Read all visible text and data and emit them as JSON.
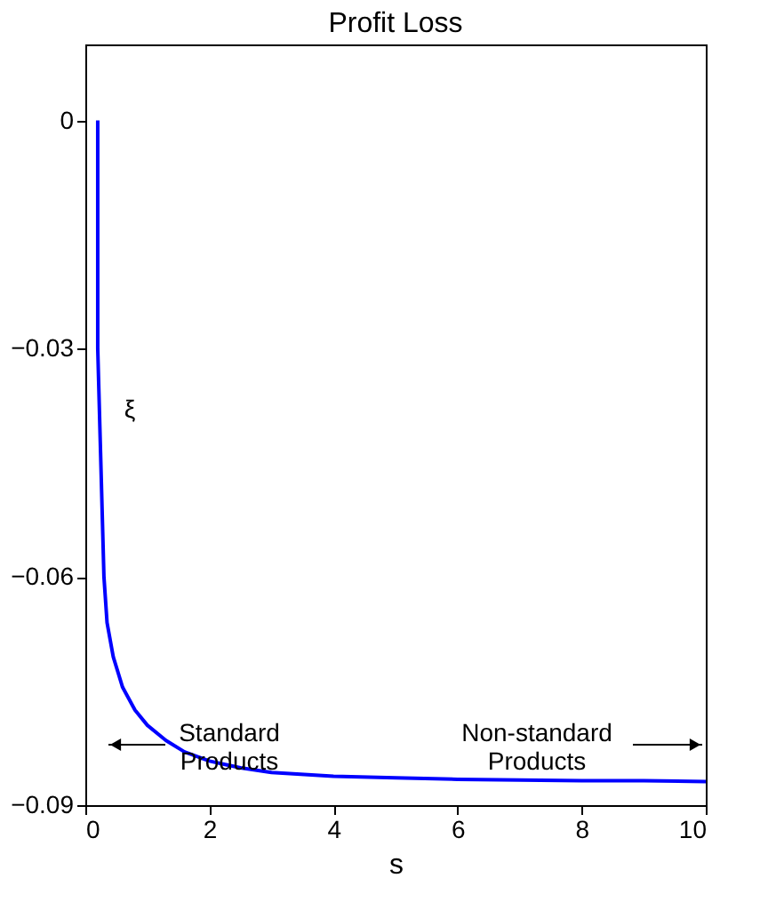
{
  "chart_data": {
    "type": "line",
    "title": "Profit Loss",
    "xlabel": "s",
    "x": [
      0.2,
      0.2,
      0.3,
      0.35,
      0.45,
      0.6,
      0.8,
      1.0,
      1.3,
      1.6,
      2.0,
      2.5,
      3.0,
      4.0,
      5.0,
      6.0,
      7.0,
      8.0,
      9.0,
      10.0
    ],
    "series": [
      {
        "color": "#0000ff",
        "values": [
          0,
          -0.03,
          -0.06,
          -0.066,
          -0.0705,
          -0.0745,
          -0.0775,
          -0.0795,
          -0.0815,
          -0.083,
          -0.0842,
          -0.0851,
          -0.0857,
          -0.0862,
          -0.0864,
          -0.0866,
          -0.0867,
          -0.0868,
          -0.0868,
          -0.0869
        ]
      }
    ],
    "xlim": [
      0,
      10
    ],
    "xticks": [
      0,
      2,
      4,
      6,
      8,
      10
    ],
    "ylim": [
      -0.09,
      0.01
    ],
    "yticks": [
      0,
      -0.03,
      -0.06,
      -0.09
    ],
    "grid": false,
    "marker": "none",
    "line_style": "solid",
    "annotations": [
      "ξ",
      "Standard\nProducts",
      "Non-standard\nProducts"
    ]
  }
}
